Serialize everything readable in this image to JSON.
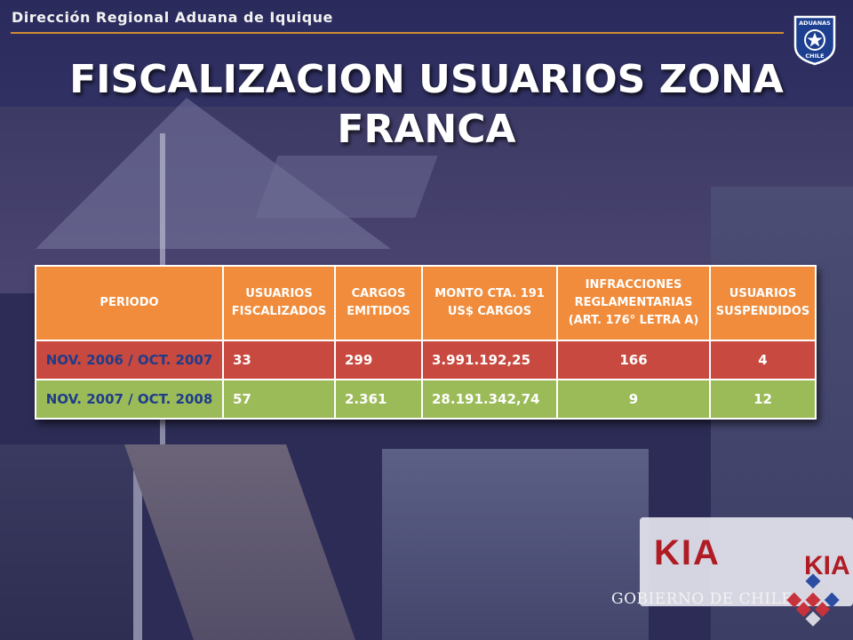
{
  "header": {
    "organization": "Dirección Regional Aduana de Iquique"
  },
  "logo": {
    "top_text": "ADUANAS",
    "bottom_text": "CHILE"
  },
  "title": {
    "line1": "FISCALIZACION USUARIOS ZONA",
    "line2": "FRANCA"
  },
  "table": {
    "headers": {
      "periodo": "PERIODO",
      "usuarios_fiscalizados": "USUARIOS FISCALIZADOS",
      "cargos_emitidos": "CARGOS EMITIDOS",
      "monto": "MONTO CTA. 191 US$ CARGOS",
      "infracciones": "INFRACCIONES REGLAMENTARIAS (ART. 176° LETRA A)",
      "suspendidos": "USUARIOS SUSPENDIDOS"
    },
    "rows": [
      {
        "periodo": "NOV. 2006 / OCT. 2007",
        "usuarios_fiscalizados": "33",
        "cargos_emitidos": "299",
        "monto": "3.991.192,25",
        "infracciones": "166",
        "suspendidos": "4"
      },
      {
        "periodo": "NOV. 2007 / OCT. 2008",
        "usuarios_fiscalizados": "57",
        "cargos_emitidos": "2.361",
        "monto": "28.191.342,74",
        "infracciones": "9",
        "suspendidos": "12"
      }
    ],
    "colors": {
      "header": "#f08c3c",
      "row1": "#c8493f",
      "row2": "#9bbb59"
    }
  },
  "background_sign": {
    "brand": "KIA",
    "brand2": "KIA"
  },
  "footer": {
    "government": "GOBIERNO DE CHILE"
  }
}
